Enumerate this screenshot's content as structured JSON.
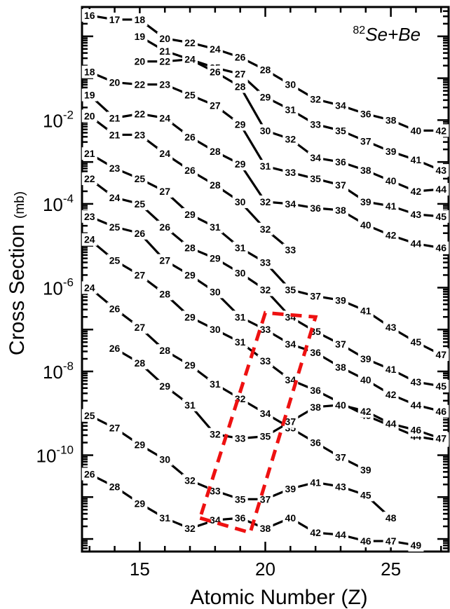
{
  "chart_data": {
    "type": "line",
    "annotation": {
      "isotope": "82",
      "reaction": "Se+Be"
    },
    "xlabel": "Atomic Number (Z)",
    "ylabel": "Cross Section",
    "ylabel_unit": "(mb)",
    "xlim": [
      12.7,
      27.3
    ],
    "ylim_log10": [
      -12.3,
      0.7
    ],
    "yscale": "log",
    "x_ticks": [
      15,
      20,
      25
    ],
    "x_tick_labels": [
      "15",
      "20",
      "25"
    ],
    "y_tick_exponents": [
      -2,
      -4,
      -6,
      -8,
      -10
    ],
    "y_tick_base": "10",
    "grid": false,
    "highlight_box": {
      "color": "#ee1111",
      "style": "dashed",
      "corners": [
        [
          17.4,
          -11.5
        ],
        [
          19.4,
          -11.85
        ],
        [
          22.0,
          -6.7
        ],
        [
          20.0,
          -6.6
        ]
      ]
    },
    "series": [
      {
        "points": [
          [
            13,
            0.5,
            "16"
          ],
          [
            14,
            0.4,
            "17"
          ],
          [
            15,
            0.4,
            "18"
          ],
          [
            16,
            -0.05,
            "20"
          ],
          [
            17,
            -0.15,
            "22"
          ],
          [
            18,
            -0.3,
            "24"
          ],
          [
            19,
            -0.5,
            "26"
          ],
          [
            20,
            -0.8,
            "28"
          ],
          [
            21,
            -1.15,
            "30"
          ],
          [
            22,
            -1.5,
            "32"
          ],
          [
            23,
            -1.65,
            "34"
          ],
          [
            24,
            -1.85,
            "36"
          ],
          [
            25,
            -2.0,
            "38"
          ],
          [
            26,
            -2.25,
            "40"
          ],
          [
            27,
            -2.25,
            "42"
          ]
        ]
      },
      {
        "points": [
          [
            15,
            0.0,
            "19"
          ],
          [
            16,
            -0.35,
            "21"
          ],
          [
            17,
            -0.55,
            "23"
          ],
          [
            18,
            -0.75,
            "25"
          ],
          [
            19,
            -0.9,
            "27"
          ],
          [
            20,
            -1.45,
            "29"
          ],
          [
            21,
            -1.75,
            "31"
          ],
          [
            22,
            -2.1,
            "33"
          ],
          [
            23,
            -2.25,
            "35"
          ],
          [
            24,
            -2.5,
            "37"
          ],
          [
            25,
            -2.75,
            "39"
          ],
          [
            26,
            -2.95,
            "41"
          ],
          [
            27,
            -3.2,
            "43"
          ]
        ]
      },
      {
        "points": [
          [
            15,
            -0.6,
            "20"
          ],
          [
            16,
            -0.6,
            "22"
          ],
          [
            17,
            -0.55,
            "24"
          ],
          [
            18,
            -0.85,
            "26"
          ],
          [
            19,
            -1.2,
            "28"
          ],
          [
            20,
            -2.25,
            "30"
          ],
          [
            21,
            -2.45,
            "32"
          ],
          [
            22,
            -2.9,
            "34"
          ],
          [
            23,
            -3.0,
            "36"
          ],
          [
            24,
            -3.2,
            "38"
          ],
          [
            25,
            -3.45,
            "40"
          ],
          [
            26,
            -3.7,
            "42"
          ],
          [
            27,
            -3.65,
            "44"
          ]
        ]
      },
      {
        "points": [
          [
            13,
            -0.85,
            "18"
          ],
          [
            14,
            -1.1,
            "20"
          ],
          [
            15,
            -1.15,
            "22"
          ],
          [
            16,
            -1.15,
            "23"
          ],
          [
            17,
            -1.4,
            "25"
          ],
          [
            18,
            -1.65,
            "27"
          ],
          [
            19,
            -2.1,
            "29"
          ],
          [
            20,
            -3.1,
            "31"
          ],
          [
            21,
            -3.25,
            "33"
          ],
          [
            22,
            -3.4,
            "35"
          ],
          [
            23,
            -3.55,
            "37"
          ],
          [
            24,
            -3.95,
            "39"
          ],
          [
            25,
            -4.05,
            "41"
          ],
          [
            26,
            -4.25,
            "43"
          ],
          [
            27,
            -4.3,
            "45"
          ]
        ]
      },
      {
        "points": [
          [
            13,
            -1.4,
            "19"
          ],
          [
            14,
            -1.95,
            "21"
          ],
          [
            15,
            -1.85,
            "22"
          ],
          [
            16,
            -1.95,
            "24"
          ],
          [
            17,
            -2.4,
            "26"
          ],
          [
            18,
            -2.75,
            "28"
          ],
          [
            19,
            -3.05,
            "29"
          ],
          [
            20,
            -3.95,
            "32"
          ],
          [
            21,
            -4.0,
            "34"
          ],
          [
            22,
            -4.1,
            "36"
          ],
          [
            23,
            -4.15,
            "38"
          ],
          [
            24,
            -4.5,
            "40"
          ],
          [
            25,
            -4.75,
            "42"
          ],
          [
            26,
            -4.95,
            "44"
          ],
          [
            27,
            -5.05,
            "46"
          ]
        ]
      },
      {
        "points": [
          [
            13,
            -1.9,
            "20"
          ],
          [
            14,
            -2.35,
            "21"
          ],
          [
            15,
            -2.35,
            "23"
          ],
          [
            16,
            -2.8,
            "24"
          ],
          [
            17,
            -3.2,
            "26"
          ],
          [
            18,
            -3.55,
            "28"
          ],
          [
            19,
            -3.95,
            "30"
          ],
          [
            20,
            -4.6,
            "32"
          ],
          [
            21,
            -5.1,
            "33"
          ]
        ]
      },
      {
        "points": [
          [
            13,
            -2.8,
            "21"
          ],
          [
            14,
            -3.15,
            "23"
          ],
          [
            15,
            -3.4,
            "25"
          ],
          [
            16,
            -3.7,
            "27"
          ],
          [
            17,
            -4.25,
            "29"
          ],
          [
            18,
            -4.55,
            "31"
          ],
          [
            19,
            -5.05,
            "31"
          ],
          [
            20,
            -5.4,
            "33"
          ],
          [
            21,
            -6.05,
            "35"
          ],
          [
            22,
            -6.2,
            "37"
          ],
          [
            23,
            -6.3,
            "39"
          ],
          [
            24,
            -6.55,
            "41"
          ],
          [
            25,
            -6.95,
            "43"
          ],
          [
            26,
            -7.3,
            "45"
          ],
          [
            27,
            -7.6,
            "47"
          ]
        ]
      },
      {
        "points": [
          [
            13,
            -3.4,
            "22"
          ],
          [
            14,
            -3.85,
            "24"
          ],
          [
            15,
            -4.0,
            "25"
          ],
          [
            16,
            -4.55,
            "26"
          ],
          [
            17,
            -5.05,
            "28"
          ],
          [
            18,
            -5.3,
            "29"
          ],
          [
            19,
            -5.65,
            "30"
          ],
          [
            20,
            -6.05,
            "32"
          ],
          [
            21,
            -6.7,
            "34"
          ],
          [
            22,
            -7.05,
            "35"
          ],
          [
            23,
            -7.35,
            "37"
          ],
          [
            24,
            -7.7,
            "39"
          ],
          [
            25,
            -7.95,
            "41"
          ],
          [
            26,
            -8.25,
            "43"
          ],
          [
            27,
            -8.35,
            "45"
          ]
        ]
      },
      {
        "points": [
          [
            13,
            -4.3,
            "23"
          ],
          [
            14,
            -4.55,
            "25"
          ],
          [
            15,
            -4.7,
            "26"
          ],
          [
            16,
            -5.35,
            "27"
          ],
          [
            17,
            -5.7,
            "29"
          ],
          [
            18,
            -6.1,
            "30"
          ],
          [
            19,
            -6.7,
            "31"
          ],
          [
            20,
            -7.0,
            "33"
          ],
          [
            21,
            -7.35,
            "34"
          ],
          [
            22,
            -7.55,
            "36"
          ],
          [
            23,
            -7.9,
            "38"
          ],
          [
            24,
            -8.2,
            "40"
          ],
          [
            25,
            -8.55,
            "42"
          ],
          [
            26,
            -8.8,
            "44"
          ],
          [
            27,
            -8.95,
            "46"
          ]
        ]
      },
      {
        "points": [
          [
            13,
            -4.85,
            "24"
          ],
          [
            14,
            -5.35,
            "25"
          ],
          [
            15,
            -5.7,
            "27"
          ],
          [
            16,
            -6.15,
            "28"
          ],
          [
            17,
            -6.7,
            "29"
          ],
          [
            18,
            -7.0,
            "30"
          ],
          [
            19,
            -7.3,
            "31"
          ],
          [
            20,
            -7.75,
            "33"
          ],
          [
            21,
            -8.2,
            "34"
          ],
          [
            22,
            -8.45,
            "36"
          ],
          [
            23,
            -8.75,
            "38"
          ],
          [
            24,
            -9.05,
            "40"
          ],
          [
            25,
            -9.3,
            "42"
          ],
          [
            26,
            -9.55,
            "44"
          ],
          [
            27,
            -9.65,
            "46"
          ]
        ]
      },
      {
        "points": [
          [
            13,
            -6.0,
            "24"
          ],
          [
            14,
            -6.5,
            "26"
          ],
          [
            15,
            -6.95,
            "27"
          ],
          [
            16,
            -7.5,
            "28"
          ],
          [
            17,
            -7.85,
            "29"
          ],
          [
            18,
            -8.3,
            "31"
          ],
          [
            19,
            -8.65,
            "32"
          ],
          [
            20,
            -9.0,
            "34"
          ],
          [
            21,
            -9.35,
            "35"
          ],
          [
            22,
            -9.7,
            "36"
          ],
          [
            23,
            -10.05,
            "37"
          ],
          [
            24,
            -10.35,
            "39"
          ]
        ]
      },
      {
        "points": [
          [
            14,
            -7.45,
            "26"
          ],
          [
            15,
            -7.8,
            "28"
          ],
          [
            16,
            -8.35,
            "29"
          ],
          [
            17,
            -8.8,
            "31"
          ],
          [
            18,
            -9.5,
            "32"
          ],
          [
            19,
            -9.6,
            "33"
          ],
          [
            20,
            -9.55,
            "35"
          ],
          [
            21,
            -9.2,
            "37"
          ],
          [
            22,
            -8.85,
            "38"
          ],
          [
            23,
            -8.8,
            "40"
          ],
          [
            24,
            -8.95,
            "42"
          ],
          [
            25,
            -9.25,
            "44"
          ],
          [
            26,
            -9.4,
            "46"
          ],
          [
            27,
            -9.6,
            "47"
          ]
        ]
      },
      {
        "points": [
          [
            13,
            -9.05,
            "25"
          ],
          [
            14,
            -9.35,
            "27"
          ],
          [
            15,
            -9.75,
            "29"
          ],
          [
            16,
            -10.1,
            "30"
          ],
          [
            17,
            -10.6,
            "32"
          ],
          [
            18,
            -10.85,
            "33"
          ],
          [
            19,
            -11.05,
            "35"
          ],
          [
            20,
            -11.05,
            "37"
          ],
          [
            21,
            -10.8,
            "39"
          ],
          [
            22,
            -10.65,
            "41"
          ],
          [
            23,
            -10.75,
            "43"
          ],
          [
            24,
            -10.95,
            "45"
          ],
          [
            25,
            -11.5,
            "48"
          ]
        ]
      },
      {
        "points": [
          [
            13,
            -10.45,
            "26"
          ],
          [
            14,
            -10.75,
            "28"
          ],
          [
            15,
            -11.15,
            "29"
          ],
          [
            16,
            -11.5,
            "31"
          ],
          [
            17,
            -11.75,
            "32"
          ],
          [
            18,
            -11.55,
            "34"
          ],
          [
            19,
            -11.5,
            "36"
          ],
          [
            20,
            -11.75,
            "38"
          ],
          [
            21,
            -11.5,
            "40"
          ],
          [
            22,
            -11.85,
            "42"
          ],
          [
            23,
            -11.9,
            "44"
          ],
          [
            24,
            -12.05,
            "46"
          ],
          [
            25,
            -12.05,
            "47"
          ],
          [
            26,
            -12.15,
            "49"
          ]
        ]
      }
    ]
  }
}
